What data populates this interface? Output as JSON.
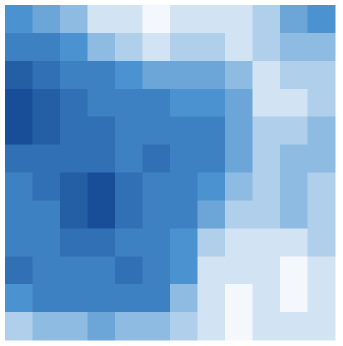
{
  "chart_data": {
    "type": "heatmap",
    "values": [
      [
        5,
        4,
        3,
        1,
        1,
        0,
        1,
        1,
        1,
        2,
        4,
        5
      ],
      [
        6,
        6,
        5,
        3,
        2,
        1,
        2,
        2,
        1,
        2,
        3,
        3
      ],
      [
        8,
        7,
        6,
        6,
        5,
        4,
        4,
        4,
        3,
        1,
        2,
        2
      ],
      [
        9,
        8,
        7,
        6,
        6,
        6,
        5,
        5,
        4,
        1,
        1,
        2
      ],
      [
        9,
        8,
        7,
        7,
        6,
        6,
        6,
        6,
        4,
        2,
        2,
        3
      ],
      [
        7,
        7,
        7,
        7,
        6,
        7,
        6,
        6,
        4,
        2,
        3,
        3
      ],
      [
        6,
        7,
        8,
        9,
        7,
        6,
        6,
        5,
        3,
        2,
        3,
        2
      ],
      [
        6,
        6,
        8,
        9,
        7,
        6,
        6,
        4,
        2,
        2,
        3,
        2
      ],
      [
        6,
        6,
        7,
        7,
        6,
        6,
        5,
        2,
        1,
        1,
        1,
        2
      ],
      [
        7,
        6,
        6,
        6,
        7,
        6,
        5,
        1,
        1,
        1,
        0,
        1
      ],
      [
        5,
        6,
        6,
        6,
        6,
        6,
        3,
        1,
        0,
        1,
        0,
        1
      ],
      [
        2,
        3,
        3,
        4,
        3,
        3,
        2,
        1,
        0,
        1,
        1,
        1
      ]
    ],
    "zlim": [
      0,
      10
    ],
    "colors": [
      "#f4f8fd",
      "#4a92d0",
      "#0b3d8a"
    ]
  }
}
